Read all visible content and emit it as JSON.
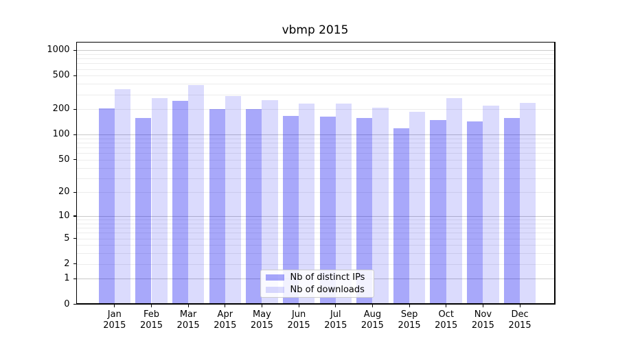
{
  "title": "vbmp 2015",
  "colors": {
    "distinct_ips": "rgba(0,0,240,0.34)",
    "downloads": "rgba(0,0,240,0.14)",
    "major_grid": "#c9c9c9",
    "minor_grid": "#ececec",
    "spine": "#000000",
    "text": "#000000"
  },
  "legend": {
    "items": [
      {
        "label": "Nb of distinct IPs",
        "color_key": "distinct_ips"
      },
      {
        "label": "Nb of downloads",
        "color_key": "downloads"
      }
    ]
  },
  "chart_data": {
    "type": "bar",
    "title": "vbmp 2015",
    "categories": [
      "Jan 2015",
      "Feb 2015",
      "Mar 2015",
      "Apr 2015",
      "May 2015",
      "Jun 2015",
      "Jul 2015",
      "Aug 2015",
      "Sep 2015",
      "Oct 2015",
      "Nov 2015",
      "Dec 2015"
    ],
    "x_tick_months": [
      "Jan",
      "Feb",
      "Mar",
      "Apr",
      "May",
      "Jun",
      "Jul",
      "Aug",
      "Sep",
      "Oct",
      "Nov",
      "Dec"
    ],
    "x_tick_year": "2015",
    "series": [
      {
        "name": "Nb of distinct IPs",
        "values": [
          205,
          159,
          253,
          200,
          200,
          168,
          164,
          159,
          118,
          149,
          143,
          157
        ]
      },
      {
        "name": "Nb of downloads",
        "values": [
          346,
          273,
          387,
          287,
          258,
          234,
          234,
          210,
          185,
          273,
          220,
          238
        ]
      }
    ],
    "xlabel": "",
    "ylabel": "",
    "yscale": "log1p",
    "ytick_labels": [
      "1000",
      "500",
      "200",
      "100",
      "50",
      "20",
      "10",
      "5",
      "2",
      "1",
      "0"
    ],
    "ytick_values": [
      1000,
      500,
      200,
      100,
      50,
      20,
      10,
      5,
      2,
      1,
      0
    ],
    "ylim": [
      0,
      1258
    ],
    "grid": "on",
    "legend_position": "inside-bottom-center"
  }
}
